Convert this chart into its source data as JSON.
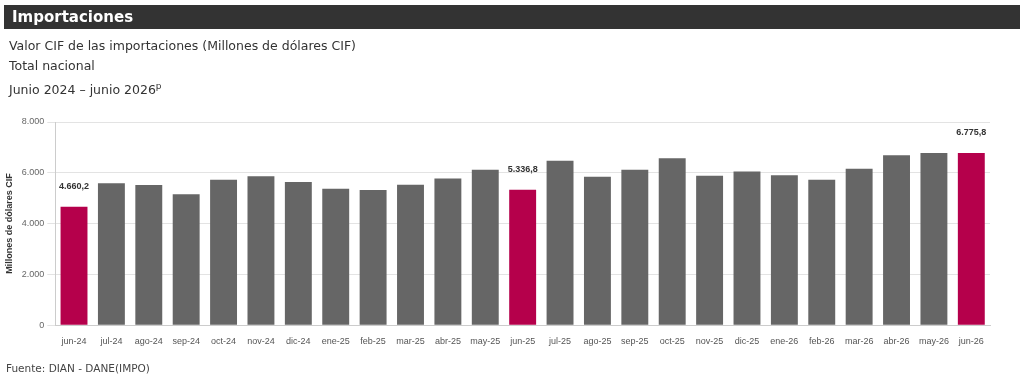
{
  "chart_data": {
    "type": "bar",
    "title": "Importaciones",
    "subtitle": "Valor CIF de las importaciones (Millones de dólares CIF)\nTotal nacional\nJunio 2024 – junio 2026$^{p}$",
    "ylabel": "Millones de dólares CIF",
    "categories": [
      "jun-24",
      "jul-24",
      "ago-24",
      "sep-24",
      "oct-24",
      "nov-24",
      "dic-24",
      "ene-25",
      "feb-25",
      "mar-25",
      "abr-25",
      "may-25",
      "jun-25",
      "jul-25",
      "ago-25",
      "sep-25",
      "oct-25",
      "nov-25",
      "dic-25",
      "ene-26",
      "feb-26",
      "mar-26",
      "abr-26",
      "may-26",
      "jun-26"
    ],
    "values": [
      4660.2,
      5590,
      5520,
      5160,
      5730,
      5860,
      5640,
      5370,
      5320,
      5530,
      5780,
      6120,
      5336.8,
      6470,
      5840,
      6120,
      6570,
      5880,
      6050,
      5900,
      5730,
      6160,
      6690,
      6780,
      6775.8
    ],
    "colors": [
      "#b5004b",
      "#666666",
      "#666666",
      "#666666",
      "#666666",
      "#666666",
      "#666666",
      "#666666",
      "#666666",
      "#666666",
      "#666666",
      "#666666",
      "#b5004b",
      "#666666",
      "#666666",
      "#666666",
      "#666666",
      "#666666",
      "#666666",
      "#666666",
      "#666666",
      "#666666",
      "#666666",
      "#666666",
      "#b5004b"
    ],
    "value_labels": [
      "4.660,2",
      null,
      null,
      null,
      null,
      null,
      null,
      null,
      null,
      null,
      null,
      null,
      "5.336,8",
      null,
      null,
      null,
      null,
      null,
      null,
      null,
      null,
      null,
      null,
      null,
      "6.775,8"
    ],
    "ylim": [
      0,
      8000
    ],
    "yticks": [
      {
        "value": 0,
        "label": "0"
      },
      {
        "value": 2000,
        "label": "2.000"
      },
      {
        "value": 4000,
        "label": "4.000"
      },
      {
        "value": 6000,
        "label": "6.000"
      },
      {
        "value": 8000,
        "label": "8.000"
      }
    ],
    "grid": "y",
    "legend": false,
    "annotations": [
      "Fuente: DIAN - DANE(IMPO)"
    ]
  }
}
